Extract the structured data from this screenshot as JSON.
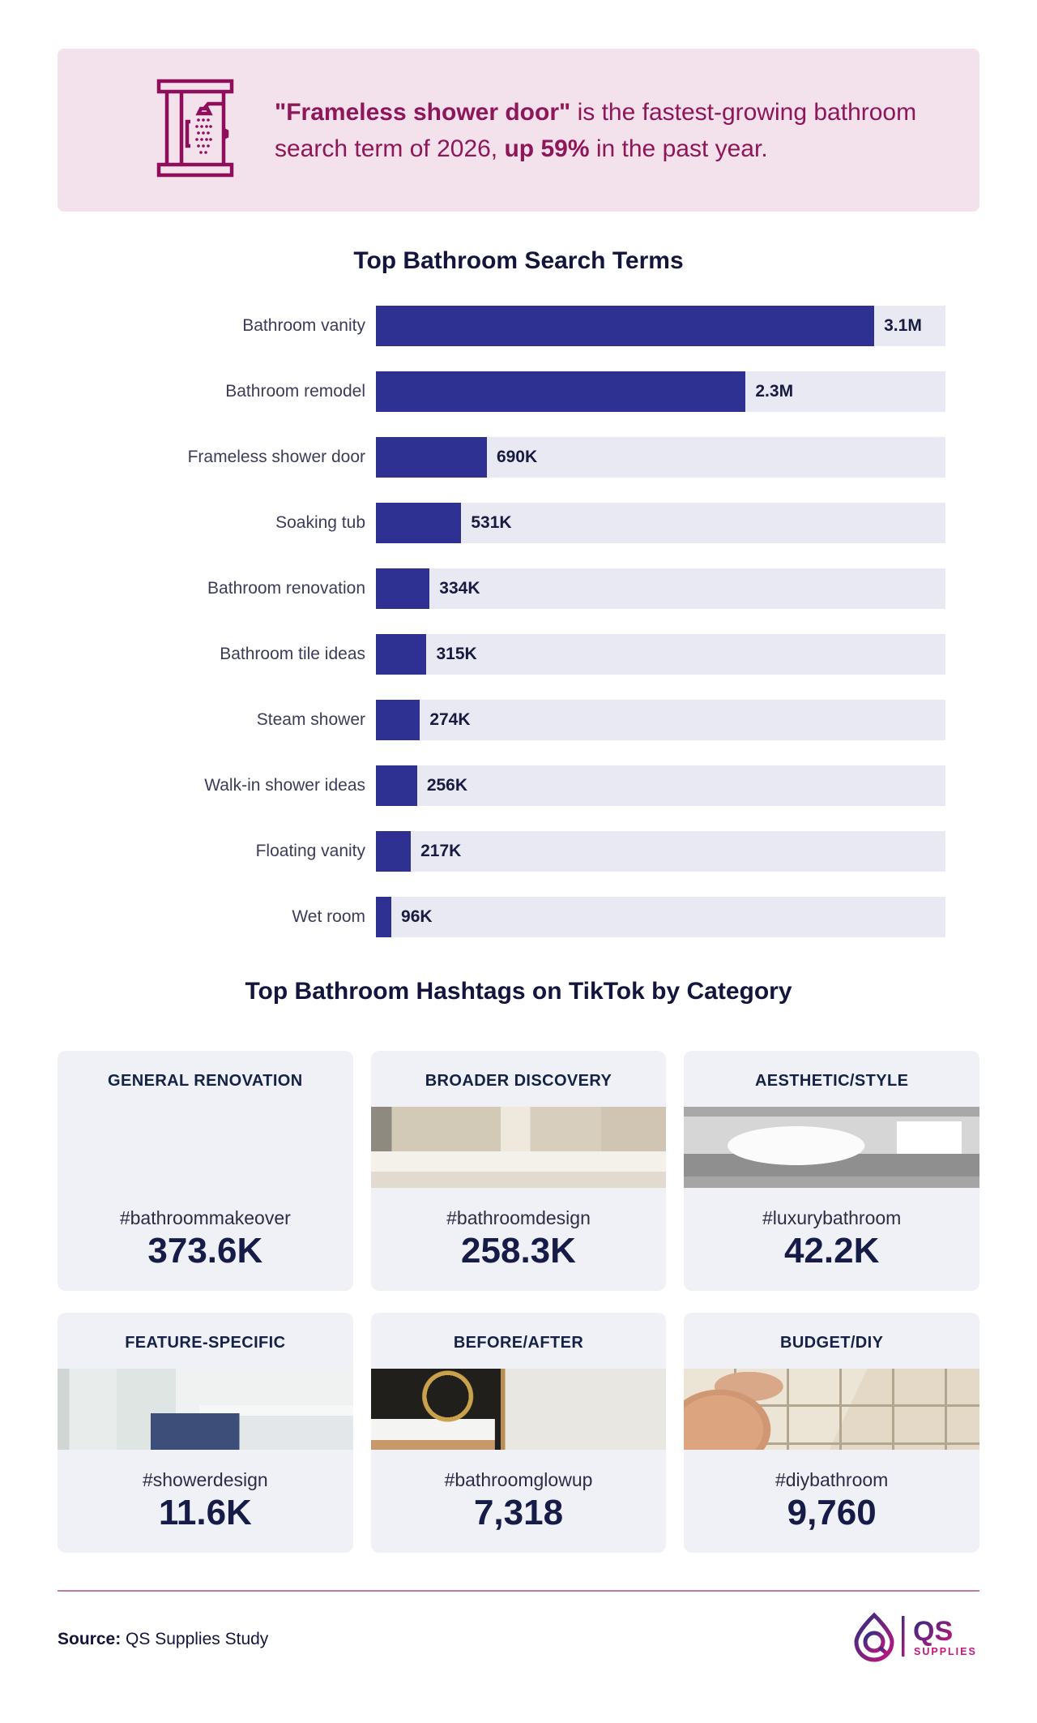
{
  "header": {
    "bg_color": "#f3e1ec",
    "text_color": "#8e1659",
    "icon": "shower-door-icon",
    "bold_lead": "\"Frameless shower door\"",
    "text_mid": " is the fastest-growing bathroom search term of 2026, ",
    "bold_stat": "up 59%",
    "text_end": " in the past year."
  },
  "chart_data": {
    "type": "bar",
    "orientation": "horizontal",
    "title": "Top Bathroom Search Terms",
    "categories": [
      "Bathroom vanity",
      "Bathroom remodel",
      "Frameless shower door",
      "Soaking tub",
      "Bathroom renovation",
      "Bathroom tile ideas",
      "Steam shower",
      "Walk-in shower ideas",
      "Floating vanity",
      "Wet room"
    ],
    "values": [
      3100000,
      2300000,
      690000,
      531000,
      334000,
      315000,
      274000,
      256000,
      217000,
      96000
    ],
    "value_labels": [
      "3.1M",
      "2.3M",
      "690K",
      "531K",
      "334K",
      "315K",
      "274K",
      "256K",
      "217K",
      "96K"
    ],
    "xlabel": "",
    "ylabel": "",
    "grid": false,
    "legend": false,
    "max_value": 3100000,
    "max_bar_fraction": 0.875,
    "bar_color": "#2e3192",
    "track_color": "#e8e9f3"
  },
  "hashtag_section": {
    "title": "Top Bathroom Hashtags on TikTok by Category",
    "cards": [
      {
        "category": "GENERAL RENOVATION",
        "hashtag": "#bathroommakeover",
        "count": "373.6K",
        "photo": "renovation-worksite-photo"
      },
      {
        "category": "BROADER DISCOVERY",
        "hashtag": "#bathroomdesign",
        "count": "258.3K",
        "photo": "beige-bathroom-photo"
      },
      {
        "category": "AESTHETIC/STYLE",
        "hashtag": "#luxurybathroom",
        "count": "42.2K",
        "photo": "modern-white-bathroom-photo"
      },
      {
        "category": "FEATURE-SPECIFIC",
        "hashtag": "#showerdesign",
        "count": "11.6K",
        "photo": "glass-shower-vanity-photo"
      },
      {
        "category": "BEFORE/AFTER",
        "hashtag": "#bathroomglowup",
        "count": "7,318",
        "photo": "black-white-hex-tile-photo"
      },
      {
        "category": "BUDGET/DIY",
        "hashtag": "#diybathroom",
        "count": "9,760",
        "photo": "tiling-hands-photo"
      }
    ]
  },
  "footer": {
    "rule_color": "#c178a2",
    "source_label": "Source:",
    "source_text": "QS Supplies Study",
    "logo_text": "QS",
    "logo_subtext": "SUPPLIES",
    "logo_navy": "#2b2e83",
    "logo_magenta": "#c4167b"
  }
}
